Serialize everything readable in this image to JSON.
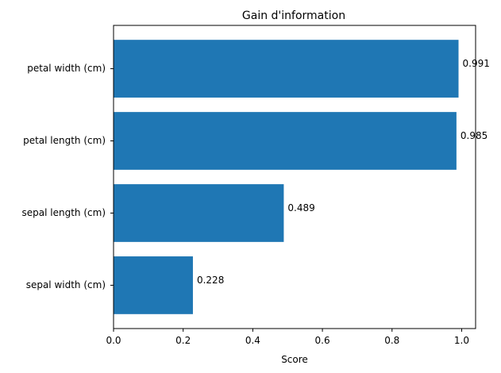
{
  "chart_data": {
    "type": "bar",
    "orientation": "horizontal",
    "title": "Gain d'information",
    "xlabel": "Score",
    "ylabel": "",
    "categories": [
      "petal width (cm)",
      "petal length (cm)",
      "sepal length (cm)",
      "sepal width (cm)"
    ],
    "values": [
      0.991,
      0.985,
      0.489,
      0.228
    ],
    "value_labels": [
      "0.991",
      "0.985",
      "0.489",
      "0.228"
    ],
    "xlim": [
      0,
      1.04
    ],
    "xticks": [
      0.0,
      0.2,
      0.4,
      0.6,
      0.8,
      1.0
    ],
    "xtick_labels": [
      "0.0",
      "0.2",
      "0.4",
      "0.6",
      "0.8",
      "1.0"
    ],
    "bar_color": "#1f77b4",
    "grid": false,
    "legend": "none"
  }
}
